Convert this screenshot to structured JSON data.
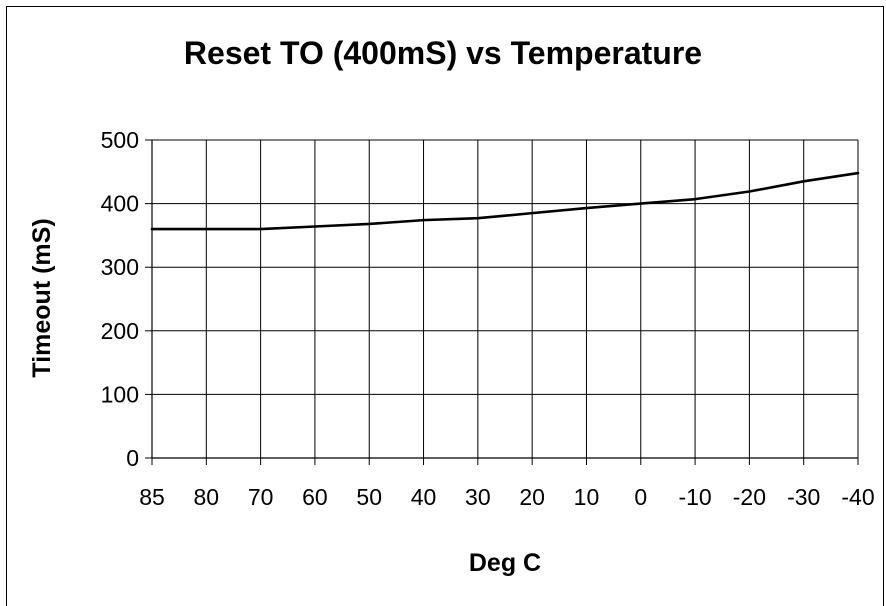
{
  "chart_data": {
    "type": "line",
    "title": "Reset TO (400mS) vs Temperature",
    "xlabel": "Deg C",
    "ylabel": "Timeout (mS)",
    "categories": [
      "85",
      "80",
      "70",
      "60",
      "50",
      "40",
      "30",
      "20",
      "10",
      "0",
      "-10",
      "-20",
      "-30",
      "-40"
    ],
    "yticks": [
      "0",
      "100",
      "200",
      "300",
      "400",
      "500"
    ],
    "ylim": [
      0,
      500
    ],
    "grid": true,
    "legend": "none",
    "series": [
      {
        "values": [
          360,
          360,
          360,
          364,
          368,
          374,
          377,
          385,
          393,
          400,
          407,
          419,
          435,
          448
        ]
      }
    ],
    "colors": {
      "line": "#000000",
      "grid": "#000000",
      "background": "#ffffff"
    }
  }
}
